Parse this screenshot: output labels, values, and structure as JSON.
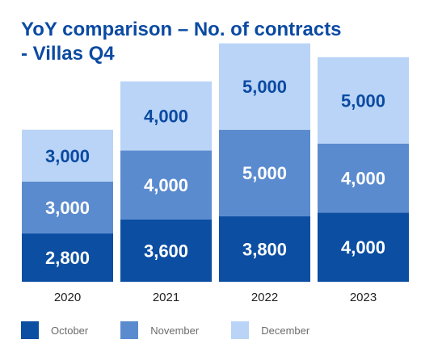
{
  "chart_data": {
    "type": "bar",
    "stacked": true,
    "title_lines": [
      "YoY comparison – No. of contracts",
      "- Villas Q4"
    ],
    "categories": [
      "2020",
      "2021",
      "2022",
      "2023"
    ],
    "series": [
      {
        "name": "October",
        "color": "#0b4ea2",
        "label_color": "#ffffff",
        "values": [
          2800,
          3600,
          3800,
          4000
        ],
        "labels": [
          "2,800",
          "3,600",
          "3,800",
          "4,000"
        ]
      },
      {
        "name": "November",
        "color": "#5b8bcf",
        "label_color": "#ffffff",
        "values": [
          3000,
          4000,
          5000,
          4000
        ],
        "labels": [
          "3,000",
          "4,000",
          "5,000",
          "4,000"
        ]
      },
      {
        "name": "December",
        "color": "#b9d4f6",
        "label_color": "#0b4aa2",
        "values": [
          3000,
          4000,
          5000,
          5000
        ],
        "labels": [
          "3,000",
          "4,000",
          "5,000",
          "5,000"
        ]
      }
    ],
    "legend_position": "bottom-left",
    "grid": false,
    "y_axis_visible": false
  }
}
